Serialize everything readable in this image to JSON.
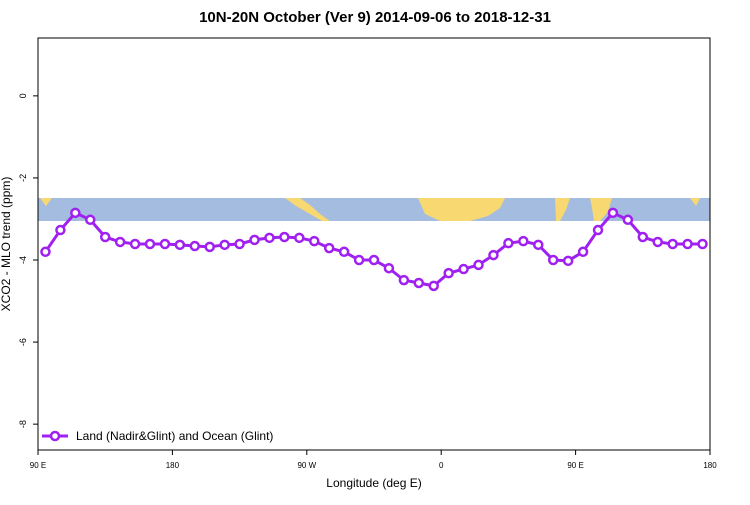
{
  "chart_data": {
    "type": "line",
    "title": "10N-20N October (Ver 9)   2014-09-06 to 2018-12-31",
    "x_label": "Longitude (deg E)",
    "y_label": "XCO2 - MLO trend (ppm)",
    "x": [
      95,
      105,
      115,
      125,
      135,
      145,
      155,
      165,
      175,
      185,
      195,
      205,
      215,
      225,
      235,
      245,
      255,
      265,
      275,
      285,
      295,
      305,
      315,
      325,
      335,
      345,
      355,
      365,
      375,
      385,
      395,
      405,
      415,
      425,
      435,
      445,
      455,
      465,
      475,
      485,
      495,
      505,
      515,
      525,
      535
    ],
    "series": [
      {
        "name": "Land (Nadir&Glint) and Ocean (Glint)",
        "color": "#a020f0",
        "values": [
          -3.8,
          -3.27,
          -2.85,
          -3.02,
          -3.44,
          -3.56,
          -3.61,
          -3.61,
          -3.61,
          -3.63,
          -3.66,
          -3.68,
          -3.63,
          -3.61,
          -3.51,
          -3.46,
          -3.44,
          -3.46,
          -3.54,
          -3.71,
          -3.8,
          -4.0,
          -4.0,
          -4.2,
          -4.49,
          -4.56,
          -4.63,
          -4.32,
          -4.22,
          -4.12,
          -3.88,
          -3.59,
          -3.54,
          -3.63,
          -4.0,
          -4.02,
          -3.8,
          -3.27,
          -2.85,
          -3.02,
          -3.44,
          -3.56,
          -3.61,
          -3.61,
          -3.61
        ]
      }
    ],
    "xlim": [
      90,
      540
    ],
    "xticks": [
      {
        "value": 90,
        "label": "90 E"
      },
      180,
      {
        "value": 270,
        "label": "90 W"
      },
      {
        "value": 360,
        "label": "0"
      },
      {
        "value": 450,
        "label": "90 E"
      },
      {
        "value": 540,
        "label": "180"
      }
    ],
    "ylim": [
      -8.63,
      1.41
    ],
    "yticks": [
      0,
      -2,
      -4,
      -6,
      -8
    ],
    "legend": "bottom-left"
  }
}
